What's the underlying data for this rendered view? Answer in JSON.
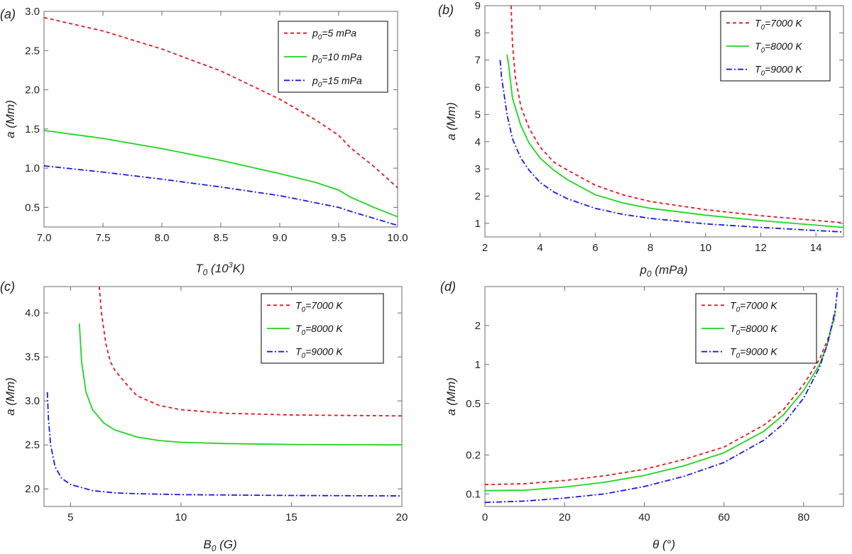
{
  "chart_data": [
    {
      "type": "line",
      "panel_label": "(a)",
      "xlabel": "T0 (10^3K)",
      "ylabel": "a (Mm)",
      "xlim": [
        7.0,
        10.0
      ],
      "ylim": [
        0.25,
        3.0
      ],
      "scale_y": "linear",
      "xticks": [
        7.0,
        7.5,
        8.0,
        8.5,
        9.0,
        9.5,
        10.0
      ],
      "xtick_labels": [
        "7.0",
        "7.5",
        "8.0",
        "8.5",
        "9.0",
        "9.5",
        "10.0"
      ],
      "yticks": [
        0.5,
        1.0,
        1.5,
        2.0,
        2.5,
        3.0
      ],
      "ytick_labels": [
        "0.5",
        "1.0",
        "1.5",
        "2.0",
        "2.5",
        "3.0"
      ],
      "legend_position": "top-right",
      "series": [
        {
          "name": "p0=5 mPa",
          "legend_main": "p",
          "legend_sub": "0",
          "legend_rest": "=5 mPa",
          "color": "#e8141e",
          "dash": "dashed",
          "x": [
            7.0,
            7.5,
            8.0,
            8.5,
            9.0,
            9.3,
            9.5,
            9.6,
            9.8,
            10.0
          ],
          "y": [
            2.92,
            2.75,
            2.52,
            2.24,
            1.88,
            1.62,
            1.42,
            1.26,
            1.02,
            0.75
          ]
        },
        {
          "name": "p0=10 mPa",
          "legend_main": "p",
          "legend_sub": "0",
          "legend_rest": "=10 mPa",
          "color": "#1fd51f",
          "dash": "solid",
          "x": [
            7.0,
            7.5,
            8.0,
            8.5,
            9.0,
            9.3,
            9.5,
            9.6,
            9.8,
            10.0
          ],
          "y": [
            1.48,
            1.38,
            1.25,
            1.1,
            0.93,
            0.82,
            0.72,
            0.63,
            0.5,
            0.38
          ]
        },
        {
          "name": "p0=15 mPa",
          "legend_main": "p",
          "legend_sub": "0",
          "legend_rest": "=15 mPa",
          "color": "#1a1ae6",
          "dash": "dashdot",
          "x": [
            7.0,
            7.5,
            8.0,
            8.5,
            9.0,
            9.3,
            9.5,
            9.6,
            9.8,
            10.0
          ],
          "y": [
            1.03,
            0.95,
            0.86,
            0.76,
            0.65,
            0.56,
            0.5,
            0.45,
            0.36,
            0.27
          ]
        }
      ]
    },
    {
      "type": "line",
      "panel_label": "(b)",
      "xlabel": "p0 (mPa)",
      "ylabel": "a (Mm)",
      "xlim": [
        2,
        15
      ],
      "ylim": [
        0.5,
        9
      ],
      "scale_y": "linear",
      "xticks": [
        2,
        4,
        6,
        8,
        10,
        12,
        14
      ],
      "xtick_labels": [
        "2",
        "4",
        "6",
        "8",
        "10",
        "12",
        "14"
      ],
      "yticks": [
        1,
        2,
        3,
        4,
        5,
        6,
        7,
        8,
        9
      ],
      "ytick_labels": [
        "1",
        "2",
        "3",
        "4",
        "5",
        "6",
        "7",
        "8",
        "9"
      ],
      "legend_position": "top-right",
      "series": [
        {
          "name": "T0=7000 K",
          "legend_main": "T",
          "legend_sub": "0",
          "legend_rest": "=7000 K",
          "color": "#e8141e",
          "dash": "dashed",
          "x": [
            2.95,
            3.0,
            3.1,
            3.3,
            3.6,
            4.0,
            4.5,
            5.0,
            6.0,
            7.0,
            8.0,
            10.0,
            12.0,
            15.0
          ],
          "y": [
            9.0,
            7.6,
            6.4,
            5.3,
            4.5,
            3.8,
            3.25,
            2.95,
            2.4,
            2.05,
            1.8,
            1.5,
            1.28,
            1.02
          ]
        },
        {
          "name": "T0=8000 K",
          "legend_main": "T",
          "legend_sub": "0",
          "legend_rest": "=8000 K",
          "color": "#1fd51f",
          "dash": "solid",
          "x": [
            2.8,
            2.85,
            3.0,
            3.3,
            3.6,
            4.0,
            4.5,
            5.0,
            6.0,
            7.0,
            8.0,
            10.0,
            12.0,
            15.0
          ],
          "y": [
            7.2,
            6.9,
            5.6,
            4.6,
            3.95,
            3.4,
            2.95,
            2.6,
            2.05,
            1.75,
            1.55,
            1.3,
            1.1,
            0.85
          ]
        },
        {
          "name": "T0=9000 K",
          "legend_main": "T",
          "legend_sub": "0",
          "legend_rest": "=9000 K",
          "color": "#1a1ae6",
          "dash": "dashdot",
          "x": [
            2.55,
            2.6,
            2.8,
            3.0,
            3.3,
            3.6,
            4.0,
            4.5,
            5.0,
            6.0,
            7.0,
            8.0,
            10.0,
            12.0,
            15.0
          ],
          "y": [
            7.0,
            6.4,
            5.0,
            4.1,
            3.4,
            2.95,
            2.5,
            2.15,
            1.9,
            1.55,
            1.33,
            1.18,
            0.98,
            0.85,
            0.68
          ]
        }
      ]
    },
    {
      "type": "line",
      "panel_label": "(c)",
      "xlabel": "B0 (G)",
      "ylabel": "a (Mm)",
      "xlim": [
        3.8,
        20
      ],
      "ylim": [
        1.8,
        4.3
      ],
      "scale_y": "linear",
      "xticks": [
        5,
        10,
        15,
        20
      ],
      "xtick_labels": [
        "5",
        "10",
        "15",
        "20"
      ],
      "yticks": [
        2.0,
        2.5,
        3.0,
        3.5,
        4.0
      ],
      "ytick_labels": [
        "2.0",
        "2.5",
        "3.0",
        "3.5",
        "4.0"
      ],
      "legend_position": "top-right",
      "series": [
        {
          "name": "T0=7000 K",
          "legend_main": "T",
          "legend_sub": "0",
          "legend_rest": "=7000 K",
          "color": "#e8141e",
          "dash": "dashed",
          "x": [
            6.3,
            6.4,
            6.6,
            6.8,
            7.0,
            7.5,
            8.0,
            9.0,
            10.0,
            12.0,
            15.0,
            20.0
          ],
          "y": [
            4.3,
            4.0,
            3.65,
            3.45,
            3.35,
            3.2,
            3.06,
            2.95,
            2.9,
            2.86,
            2.84,
            2.83
          ]
        },
        {
          "name": "T0=8000 K",
          "legend_main": "T",
          "legend_sub": "0",
          "legend_rest": "=8000 K",
          "color": "#1fd51f",
          "dash": "solid",
          "x": [
            5.4,
            5.5,
            5.7,
            6.0,
            6.5,
            7.0,
            8.0,
            9.0,
            10.0,
            12.0,
            15.0,
            20.0
          ],
          "y": [
            3.88,
            3.45,
            3.1,
            2.9,
            2.75,
            2.67,
            2.59,
            2.55,
            2.53,
            2.515,
            2.505,
            2.5
          ]
        },
        {
          "name": "T0=9000 K",
          "legend_main": "T",
          "legend_sub": "0",
          "legend_rest": "=9000 K",
          "color": "#1a1ae6",
          "dash": "dashdot",
          "x": [
            3.95,
            4.0,
            4.1,
            4.3,
            4.6,
            5.0,
            6.0,
            7.0,
            8.0,
            10.0,
            15.0,
            20.0
          ],
          "y": [
            3.1,
            2.8,
            2.5,
            2.25,
            2.12,
            2.05,
            1.98,
            1.955,
            1.945,
            1.935,
            1.925,
            1.92
          ]
        }
      ]
    },
    {
      "type": "line",
      "panel_label": "(d)",
      "xlabel": "θ (°)",
      "ylabel": "a (Mm)",
      "xlim": [
        0,
        90
      ],
      "ylim": [
        0.08,
        4.0
      ],
      "scale_y": "log",
      "xticks": [
        0,
        20,
        40,
        60,
        80
      ],
      "xtick_labels": [
        "0",
        "20",
        "40",
        "60",
        "80"
      ],
      "yticks": [
        0.1,
        0.2,
        0.5,
        1,
        2
      ],
      "ytick_labels": [
        "0.1",
        "0.2",
        "0.5",
        "1",
        "2"
      ],
      "legend_position": "top-right",
      "series": [
        {
          "name": "T0=7000 K",
          "legend_main": "T",
          "legend_sub": "0",
          "legend_rest": "=7000 K",
          "color": "#e8141e",
          "dash": "dashed",
          "x": [
            0,
            10,
            20,
            30,
            40,
            50,
            60,
            70,
            75,
            80,
            84,
            86,
            88
          ],
          "y": [
            0.118,
            0.12,
            0.127,
            0.138,
            0.155,
            0.185,
            0.23,
            0.34,
            0.45,
            0.7,
            1.1,
            1.55,
            2.4
          ]
        },
        {
          "name": "T0=8000 K",
          "legend_main": "T",
          "legend_sub": "0",
          "legend_rest": "=8000 K",
          "color": "#1fd51f",
          "dash": "solid",
          "x": [
            0,
            10,
            20,
            30,
            40,
            50,
            60,
            70,
            75,
            80,
            84,
            86,
            88
          ],
          "y": [
            0.106,
            0.107,
            0.113,
            0.123,
            0.139,
            0.165,
            0.208,
            0.305,
            0.41,
            0.63,
            1.0,
            1.45,
            2.6
          ]
        },
        {
          "name": "T0=9000 K",
          "legend_main": "T",
          "legend_sub": "0",
          "legend_rest": "=9000 K",
          "color": "#1a1ae6",
          "dash": "dashdot",
          "x": [
            0,
            10,
            20,
            30,
            40,
            50,
            60,
            70,
            75,
            80,
            84,
            86,
            88,
            88.5
          ],
          "y": [
            0.086,
            0.088,
            0.093,
            0.1,
            0.114,
            0.137,
            0.175,
            0.26,
            0.35,
            0.55,
            0.95,
            1.45,
            2.7,
            3.9
          ]
        }
      ]
    }
  ]
}
